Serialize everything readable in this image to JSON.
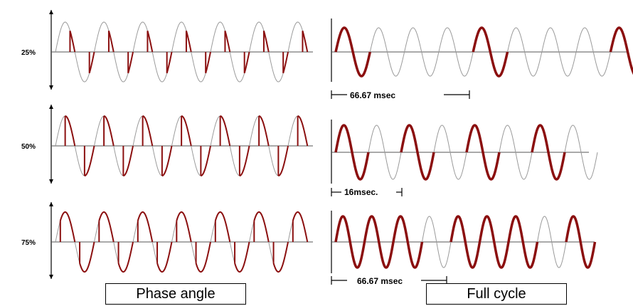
{
  "colors": {
    "wave": "#9a9a9a",
    "highlight": "#8b0f0f",
    "axis": "#000000",
    "baseline": "#555555"
  },
  "phase_angle": {
    "caption": "Phase angle",
    "rows": [
      {
        "label": "25%",
        "fraction": 0.25
      },
      {
        "label": "50%",
        "fraction": 0.5
      },
      {
        "label": "75%",
        "fraction": 0.75
      }
    ]
  },
  "full_cycle": {
    "caption": "Full cycle",
    "rows": [
      {
        "period_label": "66.67 msec",
        "on_pattern": [
          1,
          0,
          0,
          0,
          1,
          0,
          0,
          0,
          1
        ]
      },
      {
        "period_label": "16msec.",
        "on_pattern": [
          1,
          0,
          1,
          0,
          1,
          0,
          1,
          0
        ]
      },
      {
        "period_label": "66.67 msec",
        "on_pattern": [
          1,
          1,
          1,
          0,
          1,
          1,
          1,
          0,
          1
        ]
      }
    ]
  }
}
